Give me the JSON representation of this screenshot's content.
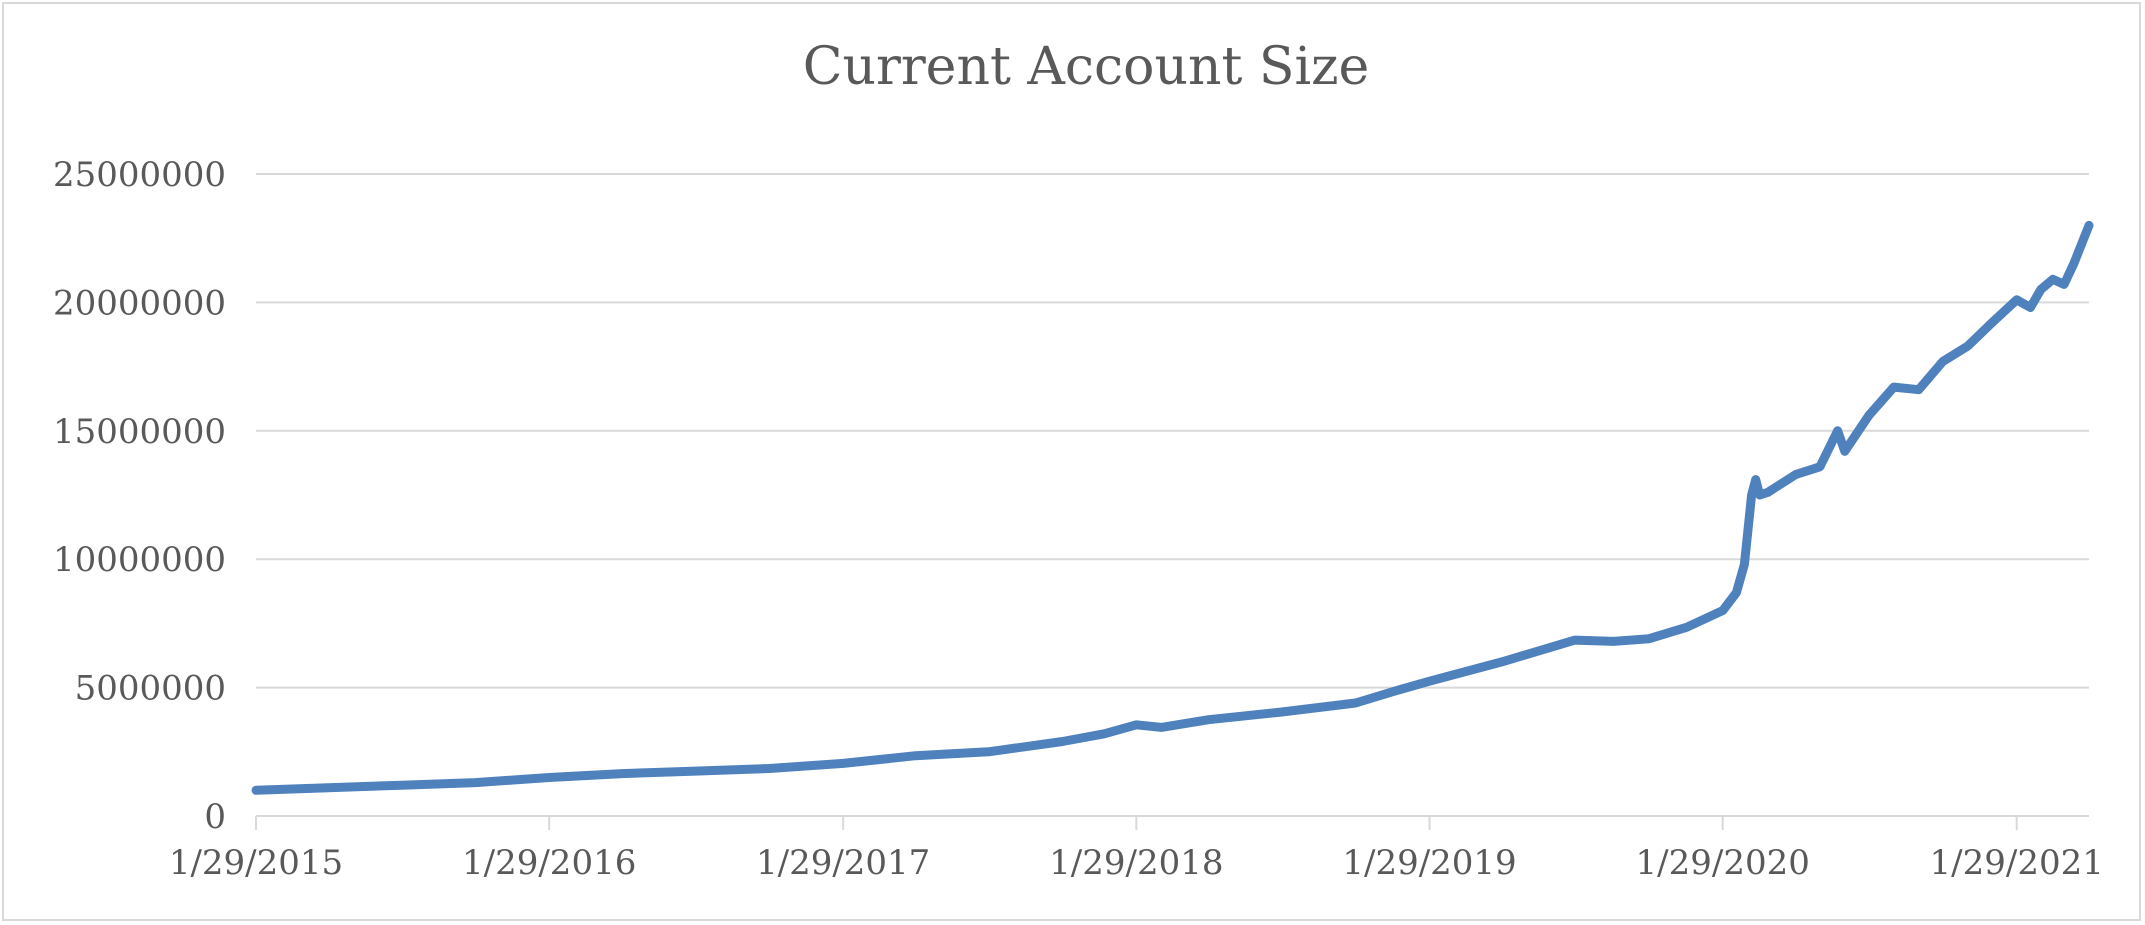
{
  "chart_data": {
    "type": "line",
    "title": "Current Account Size",
    "xlabel": "",
    "ylabel": "",
    "ylim": [
      0,
      25000000
    ],
    "yticks": [
      0,
      5000000,
      10000000,
      15000000,
      20000000,
      25000000
    ],
    "ytick_labels": [
      "0",
      "5000000",
      "10000000",
      "15000000",
      "20000000",
      "25000000"
    ],
    "xlim": [
      "2015-01-29",
      "2021-04-29"
    ],
    "xticks": [
      "2015-01-29",
      "2016-01-29",
      "2017-01-29",
      "2018-01-29",
      "2019-01-29",
      "2020-01-29",
      "2021-01-29"
    ],
    "xtick_labels": [
      "1/29/2015",
      "1/29/2016",
      "1/29/2017",
      "1/29/2018",
      "1/29/2019",
      "1/29/2020",
      "1/29/2021"
    ],
    "grid": "horizontal",
    "legend": "none",
    "line_color": "#4f81bd",
    "series": [
      {
        "x": [
          "2015-01-29",
          "2015-04-29",
          "2015-07-29",
          "2015-10-29",
          "2016-01-29",
          "2016-04-29",
          "2016-07-29",
          "2016-10-29",
          "2017-01-29",
          "2017-04-29",
          "2017-07-29",
          "2017-10-29",
          "2017-12-20",
          "2018-01-29",
          "2018-03-01",
          "2018-04-29",
          "2018-07-29",
          "2018-10-29",
          "2018-12-15",
          "2019-01-29",
          "2019-04-29",
          "2019-07-29",
          "2019-09-15",
          "2019-10-29",
          "2019-12-15",
          "2020-01-29",
          "2020-02-15",
          "2020-02-25",
          "2020-03-05",
          "2020-03-10",
          "2020-03-15",
          "2020-03-25",
          "2020-04-29",
          "2020-05-29",
          "2020-06-20",
          "2020-06-29",
          "2020-07-29",
          "2020-08-29",
          "2020-09-29",
          "2020-10-29",
          "2020-11-29",
          "2020-12-29",
          "2021-01-29",
          "2021-02-15",
          "2021-02-28",
          "2021-03-15",
          "2021-03-29",
          "2021-04-10",
          "2021-04-29"
        ],
        "y": [
          1000000,
          1100000,
          1200000,
          1300000,
          1500000,
          1650000,
          1750000,
          1850000,
          2050000,
          2350000,
          2500000,
          2900000,
          3200000,
          3550000,
          3450000,
          3750000,
          4050000,
          4400000,
          4850000,
          5250000,
          6000000,
          6850000,
          6800000,
          6900000,
          7350000,
          8000000,
          8700000,
          9800000,
          12500000,
          13100000,
          12500000,
          12600000,
          13300000,
          13600000,
          15000000,
          14200000,
          15600000,
          16700000,
          16600000,
          17700000,
          18300000,
          19200000,
          20100000,
          19800000,
          20500000,
          20900000,
          20700000,
          21500000,
          23000000
        ]
      }
    ]
  }
}
